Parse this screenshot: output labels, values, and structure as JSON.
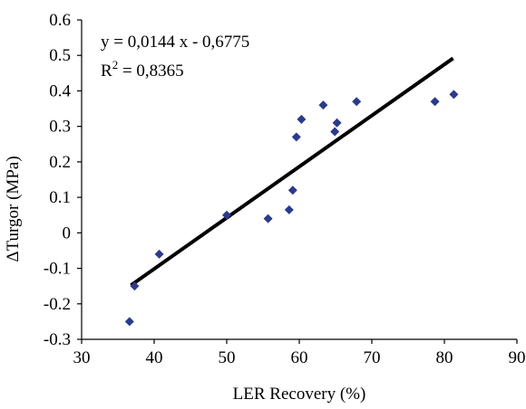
{
  "chart_data": {
    "type": "scatter",
    "xlabel": "LER Recovery (%)",
    "ylabel": "ΔTurgor (MPa)",
    "xlim": [
      30,
      90
    ],
    "ylim": [
      -0.3,
      0.6
    ],
    "xticks": [
      "30",
      "40",
      "50",
      "60",
      "70",
      "80",
      "90"
    ],
    "yticks": [
      "-0.3",
      "-0.2",
      "-0.1",
      "0",
      "0.1",
      "0.2",
      "0.3",
      "0.4",
      "0.5",
      "0.6"
    ],
    "x_tick_values": [
      30,
      40,
      50,
      60,
      70,
      80,
      90
    ],
    "y_tick_values": [
      -0.3,
      -0.2,
      -0.1,
      0,
      0.1,
      0.2,
      0.3,
      0.4,
      0.5,
      0.6
    ],
    "grid": false,
    "legend": "none",
    "marker": "diamond",
    "marker_color": "#2B3A8C",
    "line_color": "#000000",
    "series": [
      {
        "points": [
          {
            "x": 36.6,
            "y": -0.25
          },
          {
            "x": 37.3,
            "y": -0.15
          },
          {
            "x": 40.7,
            "y": -0.06
          },
          {
            "x": 50.0,
            "y": 0.05
          },
          {
            "x": 55.7,
            "y": 0.04
          },
          {
            "x": 58.6,
            "y": 0.065
          },
          {
            "x": 59.1,
            "y": 0.12
          },
          {
            "x": 59.6,
            "y": 0.27
          },
          {
            "x": 60.3,
            "y": 0.32
          },
          {
            "x": 63.3,
            "y": 0.36
          },
          {
            "x": 64.9,
            "y": 0.285
          },
          {
            "x": 65.2,
            "y": 0.31
          },
          {
            "x": 67.9,
            "y": 0.37
          },
          {
            "x": 78.7,
            "y": 0.37
          },
          {
            "x": 81.3,
            "y": 0.39
          }
        ]
      }
    ],
    "trendline": {
      "type": "linear",
      "slope": 0.0144,
      "intercept": -0.6775,
      "x_range": [
        36.8,
        81.2
      ]
    },
    "annotations": {
      "equation": "y = 0,0144 x - 0,6775",
      "r2_prefix": "R",
      "r2_sup": "2",
      "r2_suffix": " = 0,8365"
    }
  }
}
